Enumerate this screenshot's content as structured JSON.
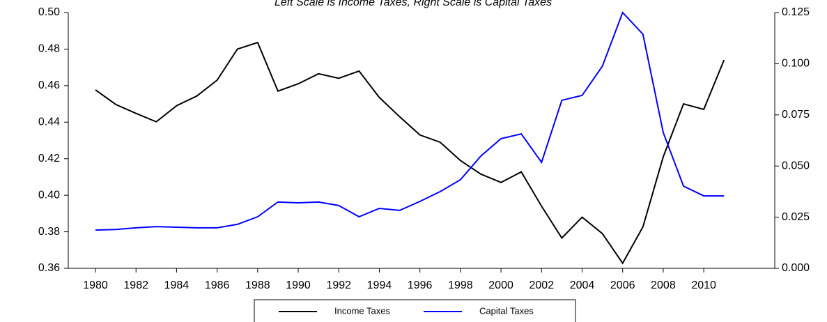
{
  "chart_data": {
    "type": "line",
    "title": "Left Scale is Income Taxes, Right Scale is Capital Taxes",
    "x": [
      1980,
      1981,
      1982,
      1983,
      1984,
      1985,
      1986,
      1987,
      1988,
      1989,
      1990,
      1991,
      1992,
      1993,
      1994,
      1995,
      1996,
      1997,
      1998,
      1999,
      2000,
      2001,
      2002,
      2003,
      2004,
      2005,
      2006,
      2007,
      2008,
      2009,
      2010,
      2011
    ],
    "xlim": [
      1978.66,
      2013.5
    ],
    "xticks": [
      1980,
      1982,
      1984,
      1986,
      1988,
      1990,
      1992,
      1994,
      1996,
      1998,
      2000,
      2002,
      2004,
      2006,
      2008,
      2010
    ],
    "ylim": [
      0.36,
      0.5
    ],
    "yticks": [
      {
        "value": 0.36,
        "label": "0.36"
      },
      0.38,
      {
        "value": 0.4,
        "label": "0.40"
      },
      0.42,
      0.44,
      0.46,
      0.48,
      {
        "value": 0.5,
        "label": "0.50"
      }
    ],
    "y2lim": [
      0,
      0.125
    ],
    "y2ticks": [
      {
        "value": 0,
        "label": "0.000"
      },
      {
        "value": 0.025,
        "label": "0.025"
      },
      {
        "value": 0.05,
        "label": "0.050"
      },
      {
        "value": 0.075,
        "label": "0.075"
      },
      {
        "value": 0.1,
        "label": "0.100"
      },
      0.125
    ],
    "series": [
      {
        "name": "Income Taxes",
        "color": "#000000",
        "values": [
          0.4577,
          0.4497,
          0.4448,
          0.4402,
          0.449,
          0.4543,
          0.463,
          0.48,
          0.4836,
          0.457,
          0.461,
          0.4665,
          0.464,
          0.468,
          0.4535,
          0.443,
          0.433,
          0.429,
          0.419,
          0.4116,
          0.407,
          0.4128,
          0.394,
          0.3766,
          0.388,
          0.379,
          0.3628,
          0.3827,
          0.421,
          0.45,
          0.447,
          0.474
        ]
      },
      {
        "name": "Capital Taxes",
        "color": "#0000ff",
        "axis": "y2",
        "values": [
          0.0187,
          0.019,
          0.0198,
          0.0204,
          0.0201,
          0.0198,
          0.0198,
          0.0215,
          0.0252,
          0.0324,
          0.032,
          0.0324,
          0.0307,
          0.0252,
          0.0293,
          0.0283,
          0.0327,
          0.0375,
          0.0433,
          0.0548,
          0.0634,
          0.0657,
          0.0518,
          0.0821,
          0.0845,
          0.0988,
          0.125,
          0.1144,
          0.0664,
          0.0402,
          0.0354,
          0.0354
        ]
      }
    ]
  }
}
